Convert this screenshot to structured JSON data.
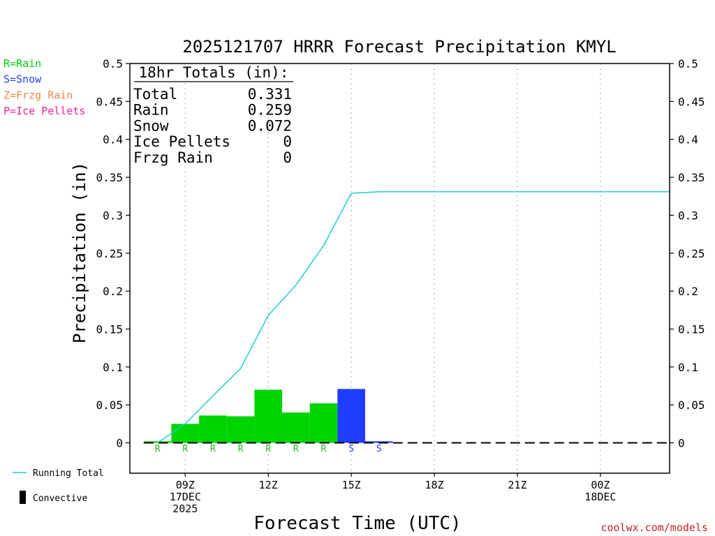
{
  "chart_data": {
    "type": "bar",
    "title": "2025121707 HRRR Forecast Precipitation KMYL",
    "xlabel": "Forecast Time (UTC)",
    "ylabel": "Precipitation (in)",
    "ylim": [
      -0.04,
      0.5
    ],
    "xlim_hours": [
      7,
      26.5
    ],
    "yticks": [
      0,
      0.05,
      0.1,
      0.15,
      0.2,
      0.25,
      0.3,
      0.35,
      0.4,
      0.45,
      0.5
    ],
    "ytick_labels": [
      "0",
      "0.05",
      "0.1",
      "0.15",
      "0.2",
      "0.25",
      "0.3",
      "0.35",
      "0.4",
      "0.45",
      "0.5"
    ],
    "xticks": [
      {
        "hour": 9,
        "lines": [
          "09Z",
          "17DEC",
          "2025"
        ]
      },
      {
        "hour": 12,
        "lines": [
          "12Z"
        ]
      },
      {
        "hour": 15,
        "lines": [
          "15Z"
        ]
      },
      {
        "hour": 18,
        "lines": [
          "18Z"
        ]
      },
      {
        "hour": 21,
        "lines": [
          "21Z"
        ]
      },
      {
        "hour": 24,
        "lines": [
          "00Z",
          "18DEC"
        ]
      }
    ],
    "grid": "vertical dotted",
    "bars": [
      {
        "hour": 8,
        "value": 0.002,
        "type": "R"
      },
      {
        "hour": 9,
        "value": 0.025,
        "type": "R"
      },
      {
        "hour": 10,
        "value": 0.036,
        "type": "R"
      },
      {
        "hour": 11,
        "value": 0.035,
        "type": "R"
      },
      {
        "hour": 12,
        "value": 0.07,
        "type": "R"
      },
      {
        "hour": 13,
        "value": 0.04,
        "type": "R"
      },
      {
        "hour": 14,
        "value": 0.052,
        "type": "R"
      },
      {
        "hour": 15,
        "value": 0.071,
        "type": "S"
      },
      {
        "hour": 16,
        "value": 0.002,
        "type": "S"
      }
    ],
    "running_total": {
      "hours": [
        8,
        9,
        10,
        11,
        12,
        13,
        14,
        15,
        16,
        26.5
      ],
      "values": [
        0.0,
        0.025,
        0.062,
        0.098,
        0.168,
        0.208,
        0.26,
        0.329,
        0.331,
        0.331
      ]
    },
    "totals_box": {
      "heading": "18hr Totals (in):",
      "rows": [
        {
          "label": "Total",
          "value": "0.331"
        },
        {
          "label": "Rain",
          "value": "0.259"
        },
        {
          "label": "Snow",
          "value": "0.072"
        },
        {
          "label": "Ice Pellets",
          "value": "0"
        },
        {
          "label": "Frzg Rain",
          "value": "0"
        }
      ]
    },
    "type_legend": [
      {
        "code": "R",
        "text": "R=Rain",
        "color": "#00cc00"
      },
      {
        "code": "S",
        "text": "S=Snow",
        "color": "#2244ee"
      },
      {
        "code": "Z",
        "text": "Z=Frzg Rain",
        "color": "#ee8844"
      },
      {
        "code": "P",
        "text": "P=Ice Pellets",
        "color": "#ee2299"
      }
    ],
    "bottom_legend": [
      {
        "kind": "line",
        "text": "Running Total",
        "color": "#22cccc"
      },
      {
        "kind": "bar",
        "text": "Convective",
        "color": "#000000"
      }
    ],
    "credit": "coolwx.com/models",
    "colors": {
      "rain": "#00d400",
      "snow": "#1f3cff",
      "running_total": "#22cccc",
      "credit": "#cc2222"
    }
  }
}
